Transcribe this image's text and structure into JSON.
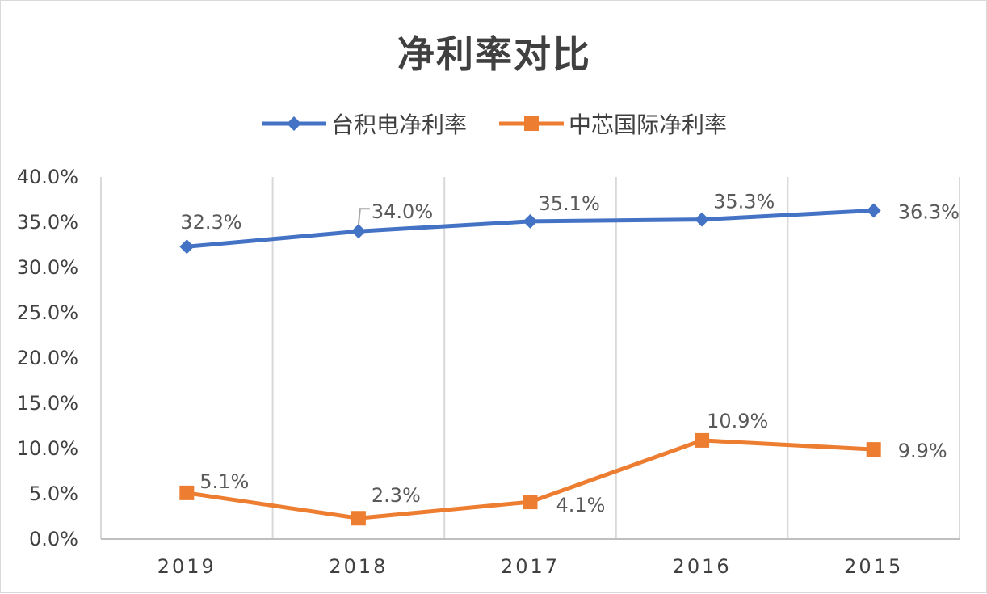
{
  "chart_data": {
    "type": "line",
    "title": "净利率对比",
    "categories": [
      "2019",
      "2018",
      "2017",
      "2016",
      "2015"
    ],
    "ylim": [
      0,
      40
    ],
    "yticks": [
      "0.0%",
      "5.0%",
      "10.0%",
      "15.0%",
      "20.0%",
      "25.0%",
      "30.0%",
      "35.0%",
      "40.0%"
    ],
    "grid": "vertical",
    "legend_position": "top",
    "series": [
      {
        "name": "台积电净利率",
        "color": "#4472C4",
        "marker": "diamond",
        "values": [
          32.3,
          34.0,
          35.1,
          35.3,
          36.3
        ],
        "labels": [
          "32.3%",
          "34.0%",
          "35.1%",
          "35.3%",
          "36.3%"
        ]
      },
      {
        "name": "中芯国际净利率",
        "color": "#ED7D31",
        "marker": "square",
        "values": [
          5.1,
          2.3,
          4.1,
          10.9,
          9.9
        ],
        "labels": [
          "5.1%",
          "2.3%",
          "4.1%",
          "10.9%",
          "9.9%"
        ]
      }
    ]
  }
}
